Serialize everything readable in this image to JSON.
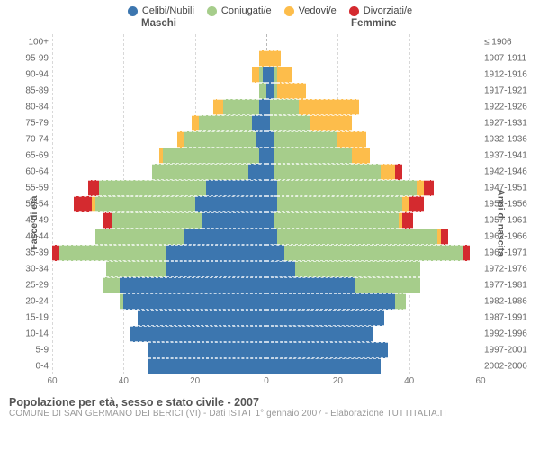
{
  "legend": [
    {
      "label": "Celibi/Nubili",
      "color": "#3c76af"
    },
    {
      "label": "Coniugati/e",
      "color": "#a6cd8b"
    },
    {
      "label": "Vedovi/e",
      "color": "#fdbd4b"
    },
    {
      "label": "Divorziati/e",
      "color": "#d42a2f"
    }
  ],
  "headers": {
    "male": "Maschi",
    "female": "Femmine"
  },
  "axis": {
    "left_title": "Fasce di età",
    "right_title": "Anni di nascita",
    "xmax": 60,
    "xticks_left": [
      60,
      40,
      20,
      0
    ],
    "xticks_right": [
      0,
      20,
      40,
      60
    ],
    "grid_positions": [
      -60,
      -40,
      -20,
      0,
      20,
      40,
      60
    ]
  },
  "colors": {
    "celibi": "#3c76af",
    "coniugati": "#a6cd8b",
    "vedovi": "#fdbd4b",
    "divorziati": "#d42a2f",
    "grid": "#d8d8d8",
    "center_grid": "#b8b8b8",
    "background": "#ffffff",
    "tick_text": "#777777",
    "label_text": "#666666"
  },
  "rows": [
    {
      "age": "100+",
      "year": "≤ 1906",
      "m": {
        "c": 0,
        "g": 0,
        "v": 0,
        "d": 0
      },
      "f": {
        "c": 0,
        "g": 0,
        "v": 0,
        "d": 0
      }
    },
    {
      "age": "95-99",
      "year": "1907-1911",
      "m": {
        "c": 0,
        "g": 0,
        "v": 2,
        "d": 0
      },
      "f": {
        "c": 0,
        "g": 0,
        "v": 4,
        "d": 0
      }
    },
    {
      "age": "90-94",
      "year": "1912-1916",
      "m": {
        "c": 1,
        "g": 1,
        "v": 2,
        "d": 0
      },
      "f": {
        "c": 2,
        "g": 1,
        "v": 4,
        "d": 0
      }
    },
    {
      "age": "85-89",
      "year": "1917-1921",
      "m": {
        "c": 0,
        "g": 2,
        "v": 0,
        "d": 0
      },
      "f": {
        "c": 2,
        "g": 1,
        "v": 8,
        "d": 0
      }
    },
    {
      "age": "80-84",
      "year": "1922-1926",
      "m": {
        "c": 2,
        "g": 10,
        "v": 3,
        "d": 0
      },
      "f": {
        "c": 1,
        "g": 8,
        "v": 17,
        "d": 0
      }
    },
    {
      "age": "75-79",
      "year": "1927-1931",
      "m": {
        "c": 4,
        "g": 15,
        "v": 2,
        "d": 0
      },
      "f": {
        "c": 1,
        "g": 11,
        "v": 12,
        "d": 0
      }
    },
    {
      "age": "70-74",
      "year": "1932-1936",
      "m": {
        "c": 3,
        "g": 20,
        "v": 2,
        "d": 0
      },
      "f": {
        "c": 2,
        "g": 18,
        "v": 8,
        "d": 0
      }
    },
    {
      "age": "65-69",
      "year": "1937-1941",
      "m": {
        "c": 2,
        "g": 27,
        "v": 1,
        "d": 0
      },
      "f": {
        "c": 2,
        "g": 22,
        "v": 5,
        "d": 0
      }
    },
    {
      "age": "60-64",
      "year": "1942-1946",
      "m": {
        "c": 5,
        "g": 27,
        "v": 0,
        "d": 0
      },
      "f": {
        "c": 2,
        "g": 30,
        "v": 4,
        "d": 2
      }
    },
    {
      "age": "55-59",
      "year": "1947-1951",
      "m": {
        "c": 17,
        "g": 30,
        "v": 0,
        "d": 3
      },
      "f": {
        "c": 3,
        "g": 39,
        "v": 2,
        "d": 3
      }
    },
    {
      "age": "50-54",
      "year": "1952-1956",
      "m": {
        "c": 20,
        "g": 28,
        "v": 1,
        "d": 5
      },
      "f": {
        "c": 3,
        "g": 35,
        "v": 2,
        "d": 4
      }
    },
    {
      "age": "45-49",
      "year": "1957-1961",
      "m": {
        "c": 18,
        "g": 25,
        "v": 0,
        "d": 3
      },
      "f": {
        "c": 2,
        "g": 35,
        "v": 1,
        "d": 3
      }
    },
    {
      "age": "40-44",
      "year": "1962-1966",
      "m": {
        "c": 23,
        "g": 25,
        "v": 0,
        "d": 0
      },
      "f": {
        "c": 3,
        "g": 45,
        "v": 1,
        "d": 2
      }
    },
    {
      "age": "35-39",
      "year": "1967-1971",
      "m": {
        "c": 28,
        "g": 30,
        "v": 0,
        "d": 2
      },
      "f": {
        "c": 5,
        "g": 50,
        "v": 0,
        "d": 2
      }
    },
    {
      "age": "30-34",
      "year": "1972-1976",
      "m": {
        "c": 28,
        "g": 17,
        "v": 0,
        "d": 0
      },
      "f": {
        "c": 8,
        "g": 35,
        "v": 0,
        "d": 0
      }
    },
    {
      "age": "25-29",
      "year": "1977-1981",
      "m": {
        "c": 41,
        "g": 5,
        "v": 0,
        "d": 0
      },
      "f": {
        "c": 25,
        "g": 18,
        "v": 0,
        "d": 0
      }
    },
    {
      "age": "20-24",
      "year": "1982-1986",
      "m": {
        "c": 40,
        "g": 1,
        "v": 0,
        "d": 0
      },
      "f": {
        "c": 36,
        "g": 3,
        "v": 0,
        "d": 0
      }
    },
    {
      "age": "15-19",
      "year": "1987-1991",
      "m": {
        "c": 36,
        "g": 0,
        "v": 0,
        "d": 0
      },
      "f": {
        "c": 33,
        "g": 0,
        "v": 0,
        "d": 0
      }
    },
    {
      "age": "10-14",
      "year": "1992-1996",
      "m": {
        "c": 38,
        "g": 0,
        "v": 0,
        "d": 0
      },
      "f": {
        "c": 30,
        "g": 0,
        "v": 0,
        "d": 0
      }
    },
    {
      "age": "5-9",
      "year": "1997-2001",
      "m": {
        "c": 33,
        "g": 0,
        "v": 0,
        "d": 0
      },
      "f": {
        "c": 34,
        "g": 0,
        "v": 0,
        "d": 0
      }
    },
    {
      "age": "0-4",
      "year": "2002-2006",
      "m": {
        "c": 33,
        "g": 0,
        "v": 0,
        "d": 0
      },
      "f": {
        "c": 32,
        "g": 0,
        "v": 0,
        "d": 0
      }
    }
  ],
  "footer": {
    "title": "Popolazione per età, sesso e stato civile - 2007",
    "subtitle": "COMUNE DI SAN GERMANO DEI BERICI (VI) - Dati ISTAT 1° gennaio 2007 - Elaborazione TUTTITALIA.IT"
  },
  "typography": {
    "legend_fontsize": 11,
    "header_fontsize": 11.5,
    "axis_title_fontsize": 10.5,
    "tick_fontsize": 10,
    "footer_title_fontsize": 12.5,
    "footer_sub_fontsize": 10,
    "font_family": "Arial, Helvetica, sans-serif"
  }
}
